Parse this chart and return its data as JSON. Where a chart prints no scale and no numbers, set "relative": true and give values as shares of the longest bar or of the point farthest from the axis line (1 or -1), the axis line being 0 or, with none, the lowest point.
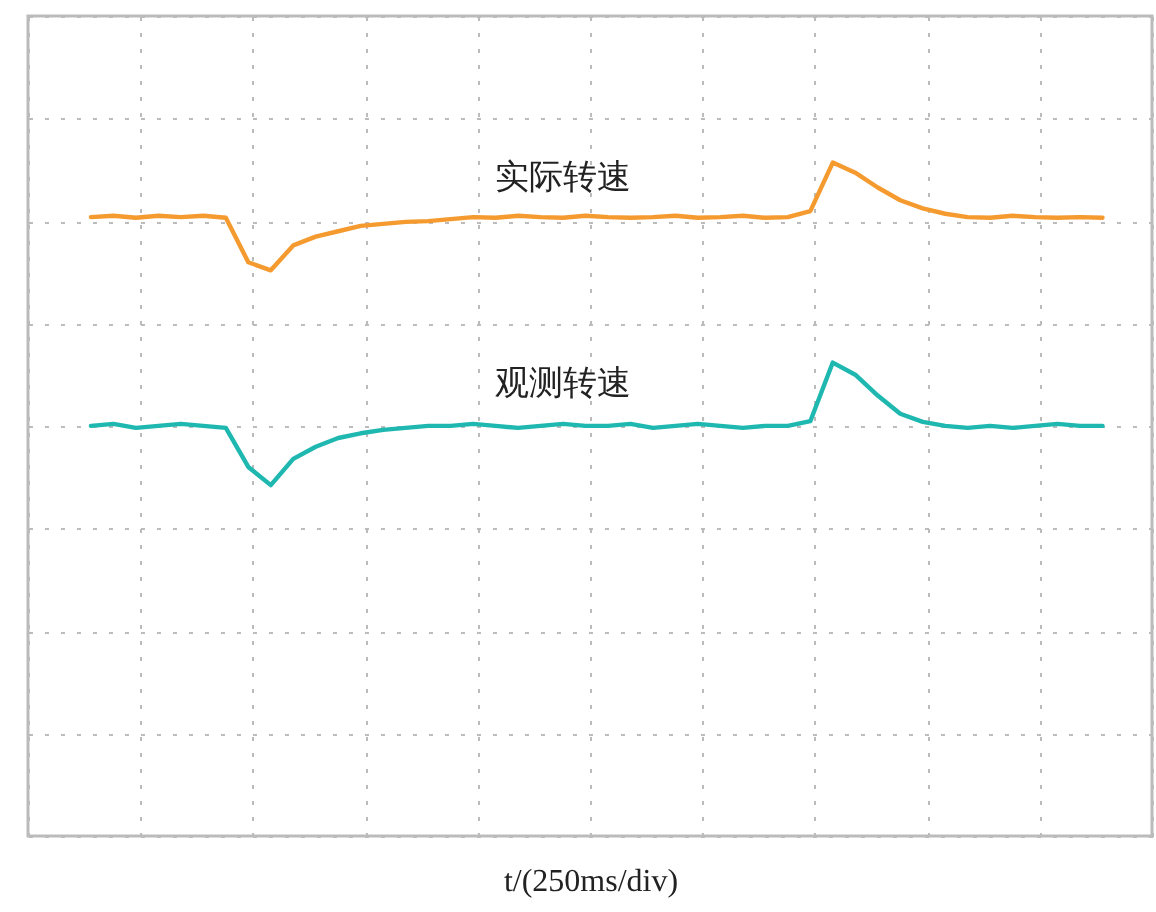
{
  "chart_data": {
    "type": "line",
    "relative": true,
    "xlabel": "t/(250ms/div)",
    "grid": true,
    "legend": false,
    "marker": "none",
    "line_style": "solid",
    "categories": [
      null,
      null,
      null,
      null,
      null,
      null,
      null,
      null,
      null,
      null,
      null,
      null,
      null,
      null,
      null,
      null,
      null,
      null,
      null,
      null,
      null,
      null,
      null,
      null,
      null,
      null,
      null,
      null,
      null,
      null,
      null,
      null,
      null,
      null,
      null,
      null,
      null,
      null,
      null,
      null,
      null,
      null,
      null,
      null,
      null,
      null
    ],
    "series": [
      {
        "name": "实际转速",
        "color": "#f59a2f",
        "values": [
          0.919,
          0.921,
          0.918,
          0.921,
          0.919,
          0.921,
          0.918,
          0.852,
          0.84,
          0.877,
          0.89,
          0.898,
          0.906,
          0.909,
          0.912,
          0.913,
          0.916,
          0.919,
          0.918,
          0.921,
          0.919,
          0.918,
          0.921,
          0.919,
          0.918,
          0.919,
          0.921,
          0.918,
          0.919,
          0.921,
          0.918,
          0.919,
          0.928,
          1.0,
          0.985,
          0.963,
          0.944,
          0.932,
          0.924,
          0.919,
          0.918,
          0.921,
          0.919,
          0.918,
          0.919,
          0.918
        ]
      },
      {
        "name": "观测转速",
        "color": "#1fb8b0",
        "values": [
          0.609,
          0.612,
          0.606,
          0.609,
          0.612,
          0.609,
          0.606,
          0.548,
          0.521,
          0.56,
          0.578,
          0.591,
          0.598,
          0.603,
          0.606,
          0.609,
          0.609,
          0.612,
          0.609,
          0.606,
          0.609,
          0.612,
          0.609,
          0.609,
          0.612,
          0.606,
          0.609,
          0.612,
          0.609,
          0.606,
          0.609,
          0.609,
          0.616,
          0.703,
          0.685,
          0.654,
          0.627,
          0.615,
          0.609,
          0.606,
          0.609,
          0.606,
          0.609,
          0.612,
          0.609,
          0.609
        ]
      }
    ]
  }
}
